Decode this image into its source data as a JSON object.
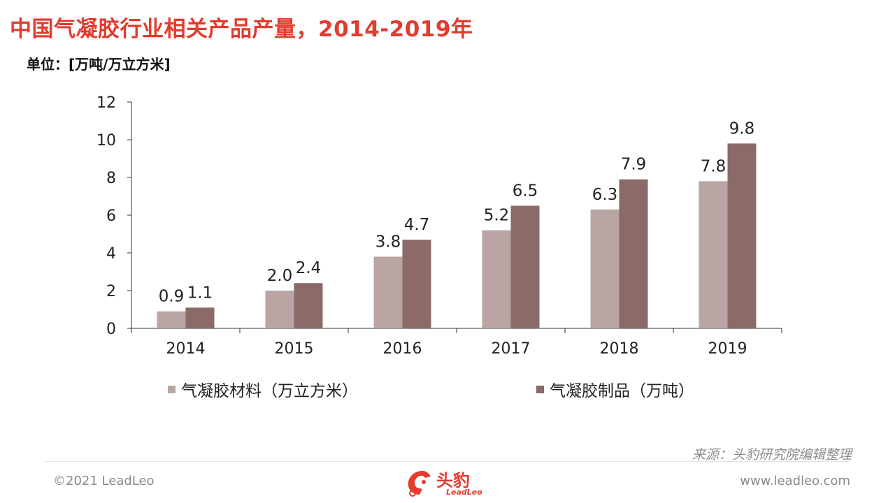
{
  "header": {
    "title": "中国气凝胶行业相关产品产量，2014-2019年",
    "unit": "单位：[万吨/万立方米]"
  },
  "chart_data": {
    "type": "bar",
    "categories": [
      "2014",
      "2015",
      "2016",
      "2017",
      "2018",
      "2019"
    ],
    "series": [
      {
        "name": "气凝胶材料（万立方米）",
        "values": [
          0.9,
          2.0,
          3.8,
          5.2,
          6.3,
          7.8
        ],
        "labels": [
          "0.9",
          "2.0",
          "3.8",
          "5.2",
          "6.3",
          "7.8"
        ],
        "color": "#b9a5a3"
      },
      {
        "name": "气凝胶制品（万吨）",
        "values": [
          1.1,
          2.4,
          4.7,
          6.5,
          7.9,
          9.8
        ],
        "labels": [
          "1.1",
          "2.4",
          "4.7",
          "6.5",
          "7.9",
          "9.8"
        ],
        "color": "#8b6a68"
      }
    ],
    "yticks": [
      "0",
      "2",
      "4",
      "6",
      "8",
      "10",
      "12"
    ],
    "ylim": [
      0,
      12
    ],
    "legend": "bottom",
    "grid": false
  },
  "footer": {
    "source": "来源：头豹研究院编辑整理",
    "copyright": "©2021 LeadLeo",
    "website": "www.leadleo.com",
    "logo_text": "头豹",
    "logo_sub": "LeadLeo"
  },
  "colors": {
    "accent": "#e33b2e"
  }
}
